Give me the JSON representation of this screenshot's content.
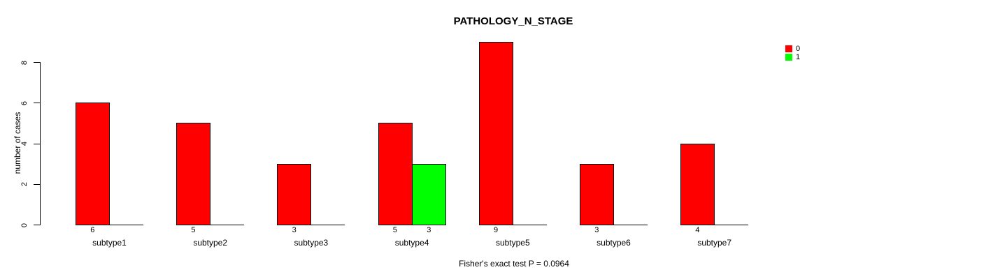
{
  "title": "PATHOLOGY_N_STAGE",
  "footer": "Fisher's exact test P = 0.0964",
  "y_axis": {
    "label": "number of cases",
    "ticks": [
      0,
      2,
      4,
      6,
      8
    ]
  },
  "legend": [
    {
      "label": "0",
      "color": "#ff0000"
    },
    {
      "label": "1",
      "color": "#00ff00"
    }
  ],
  "colors": {
    "series0": "#ff0000",
    "series1": "#00ff00",
    "axis": "#000000",
    "background": "#ffffff"
  },
  "chart_data": {
    "type": "bar",
    "title": "PATHOLOGY_N_STAGE",
    "xlabel": "",
    "ylabel": "number of cases",
    "ylim": [
      0,
      9
    ],
    "grid": false,
    "legend_position": "top-right",
    "annotation": "Fisher's exact test P = 0.0964",
    "categories": [
      "subtype1",
      "subtype2",
      "subtype3",
      "subtype4",
      "subtype5",
      "subtype6",
      "subtype7"
    ],
    "series": [
      {
        "name": "0",
        "color": "#ff0000",
        "values": [
          6,
          5,
          3,
          5,
          9,
          3,
          4
        ]
      },
      {
        "name": "1",
        "color": "#00ff00",
        "values": [
          0,
          0,
          0,
          3,
          0,
          0,
          0
        ]
      }
    ]
  }
}
